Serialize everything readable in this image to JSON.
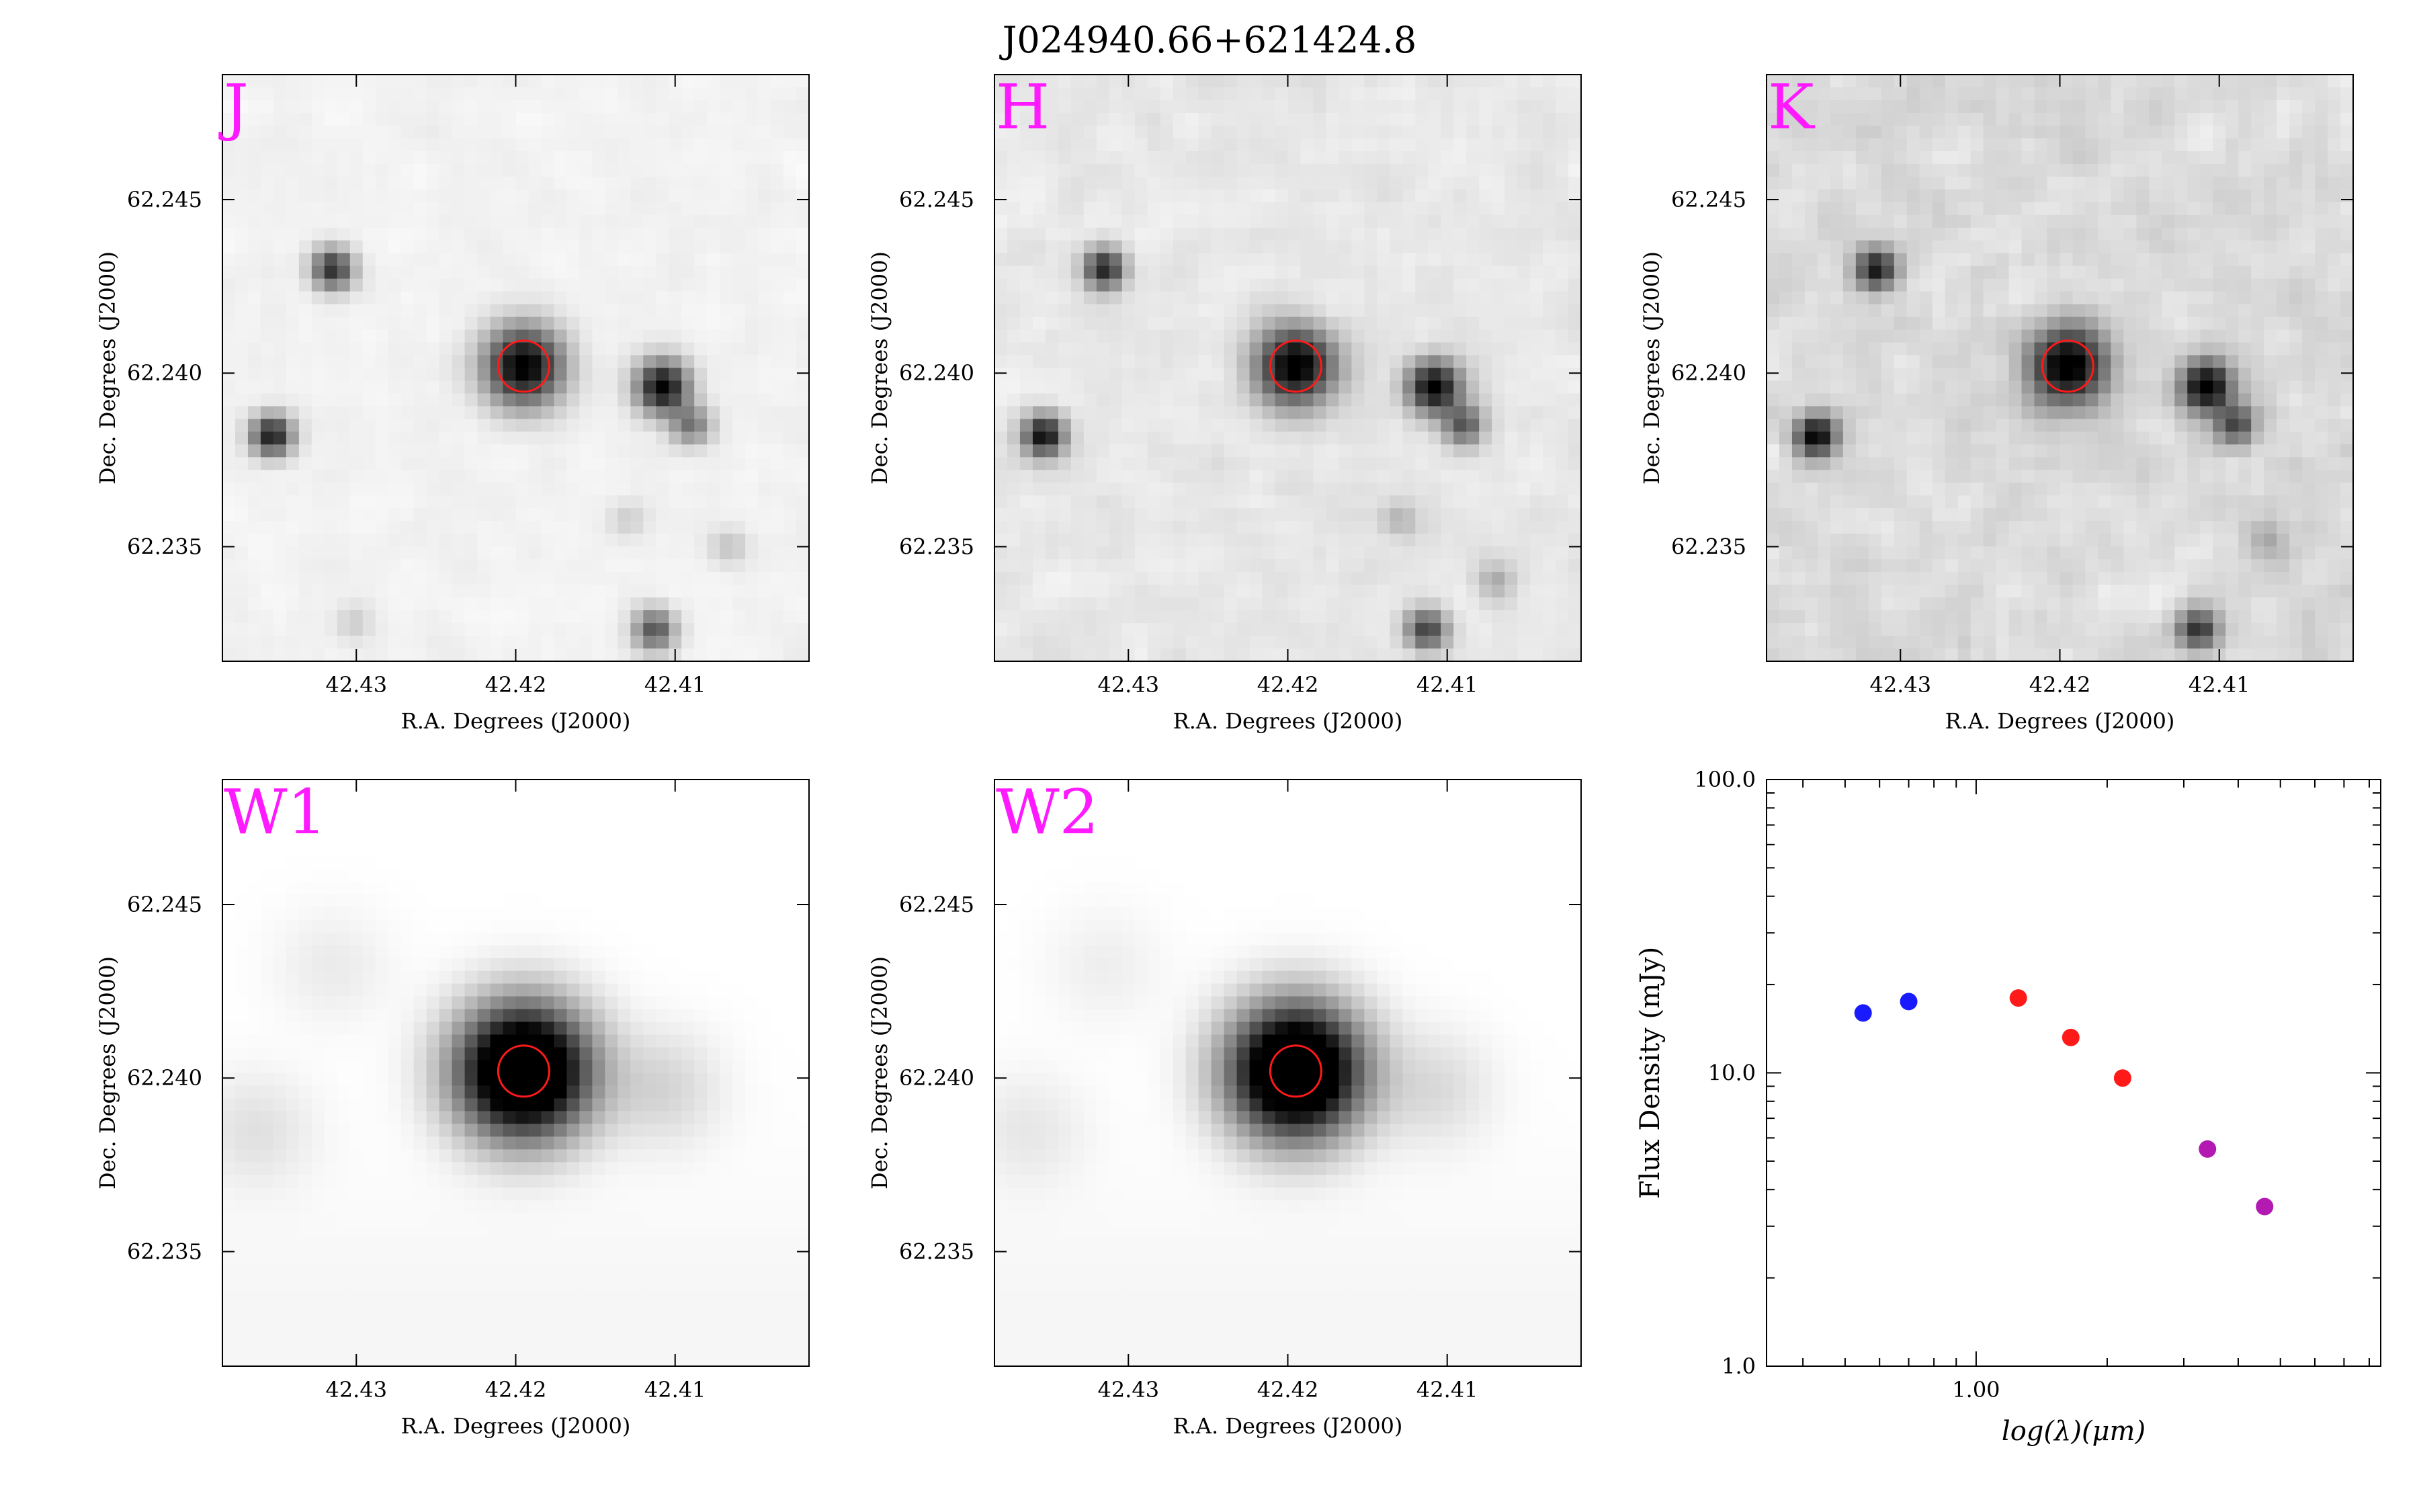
{
  "figure": {
    "title": "J024940.66+621424.8"
  },
  "chart_data": [
    {
      "type": "image",
      "band": "J",
      "xlabel": "R.A. Degrees (J2000)",
      "ylabel": "Dec. Degrees (J2000)",
      "xlim": [
        42.4016,
        42.4384
      ],
      "ylim": [
        62.2317,
        62.2486
      ],
      "xticks": [
        "42.41",
        "42.42",
        "42.43"
      ],
      "yticks": [
        "62.235",
        "62.240",
        "62.245"
      ],
      "marker_color": "#ff1a1a",
      "label_color": "#ff19ff",
      "sources": [
        {
          "ra": 42.4195,
          "dec": 62.2402,
          "amp": 1.0,
          "sigma": 2.1
        },
        {
          "ra": 42.4108,
          "dec": 62.2396,
          "amp": 0.95,
          "sigma": 1.4
        },
        {
          "ra": 42.409,
          "dec": 62.2385,
          "amp": 0.45,
          "sigma": 1.1
        },
        {
          "ra": 42.4315,
          "dec": 62.243,
          "amp": 0.75,
          "sigma": 1.1
        },
        {
          "ra": 42.4353,
          "dec": 62.2382,
          "amp": 0.85,
          "sigma": 1.1
        },
        {
          "ra": 42.4113,
          "dec": 62.2326,
          "amp": 0.6,
          "sigma": 1.1
        },
        {
          "ra": 42.4066,
          "dec": 62.235,
          "amp": 0.15,
          "sigma": 1.0
        },
        {
          "ra": 42.413,
          "dec": 62.2358,
          "amp": 0.12,
          "sigma": 1.0
        },
        {
          "ra": 42.4302,
          "dec": 62.2328,
          "amp": 0.12,
          "sigma": 1.0
        }
      ],
      "noise": 0.06,
      "circle": {
        "ra": 42.4195,
        "dec": 62.2402
      }
    },
    {
      "type": "image",
      "band": "H",
      "xlabel": "R.A. Degrees (J2000)",
      "ylabel": "Dec. Degrees (J2000)",
      "xlim": [
        42.4016,
        42.4384
      ],
      "ylim": [
        62.2317,
        62.2486
      ],
      "xticks": [
        "42.41",
        "42.42",
        "42.43"
      ],
      "yticks": [
        "62.235",
        "62.240",
        "62.245"
      ],
      "marker_color": "#ff1a1a",
      "label_color": "#ff19ff",
      "sources": [
        {
          "ra": 42.4195,
          "dec": 62.2402,
          "amp": 1.0,
          "sigma": 2.1
        },
        {
          "ra": 42.4108,
          "dec": 62.2396,
          "amp": 0.95,
          "sigma": 1.4
        },
        {
          "ra": 42.409,
          "dec": 62.2385,
          "amp": 0.55,
          "sigma": 1.1
        },
        {
          "ra": 42.4315,
          "dec": 62.243,
          "amp": 0.8,
          "sigma": 1.1
        },
        {
          "ra": 42.4353,
          "dec": 62.2382,
          "amp": 0.9,
          "sigma": 1.1
        },
        {
          "ra": 42.4113,
          "dec": 62.2326,
          "amp": 0.65,
          "sigma": 1.1
        },
        {
          "ra": 42.407,
          "dec": 62.234,
          "amp": 0.2,
          "sigma": 1.0
        },
        {
          "ra": 42.413,
          "dec": 62.2358,
          "amp": 0.18,
          "sigma": 1.0
        }
      ],
      "noise": 0.12,
      "circle": {
        "ra": 42.4195,
        "dec": 62.2402
      }
    },
    {
      "type": "image",
      "band": "K",
      "xlabel": "R.A. Degrees (J2000)",
      "ylabel": "Dec. Degrees (J2000)",
      "xlim": [
        42.4016,
        42.4384
      ],
      "ylim": [
        62.2317,
        62.2486
      ],
      "xticks": [
        "42.41",
        "42.42",
        "42.43"
      ],
      "yticks": [
        "62.235",
        "62.240",
        "62.245"
      ],
      "marker_color": "#ff1a1a",
      "label_color": "#ff19ff",
      "sources": [
        {
          "ra": 42.4195,
          "dec": 62.2402,
          "amp": 1.0,
          "sigma": 2.1
        },
        {
          "ra": 42.4108,
          "dec": 62.2396,
          "amp": 0.95,
          "sigma": 1.4
        },
        {
          "ra": 42.409,
          "dec": 62.2385,
          "amp": 0.6,
          "sigma": 1.1
        },
        {
          "ra": 42.4315,
          "dec": 62.243,
          "amp": 0.8,
          "sigma": 1.1
        },
        {
          "ra": 42.4353,
          "dec": 62.2382,
          "amp": 0.9,
          "sigma": 1.1
        },
        {
          "ra": 42.4113,
          "dec": 62.2326,
          "amp": 0.7,
          "sigma": 1.1
        },
        {
          "ra": 42.407,
          "dec": 62.2352,
          "amp": 0.2,
          "sigma": 1.0
        }
      ],
      "noise": 0.2,
      "circle": {
        "ra": 42.4195,
        "dec": 62.2402
      }
    },
    {
      "type": "image",
      "band": "W1",
      "xlabel": "R.A. Degrees (J2000)",
      "ylabel": "Dec. Degrees (J2000)",
      "xlim": [
        42.4016,
        42.4384
      ],
      "ylim": [
        62.2317,
        62.2486
      ],
      "xticks": [
        "42.41",
        "42.42",
        "42.43"
      ],
      "yticks": [
        "62.235",
        "62.240",
        "62.245"
      ],
      "marker_color": "#ff1a1a",
      "label_color": "#ff19ff",
      "sources": [
        {
          "ra": 42.4195,
          "dec": 62.2402,
          "amp": 1.6,
          "sigma": 3.4
        },
        {
          "ra": 42.4108,
          "dec": 62.2397,
          "amp": 0.12,
          "sigma": 3.0
        },
        {
          "ra": 42.4363,
          "dec": 62.2385,
          "amp": 0.08,
          "sigma": 3.0
        },
        {
          "ra": 42.4315,
          "dec": 62.2432,
          "amp": 0.05,
          "sigma": 3.0
        }
      ],
      "noise": 0.0,
      "circle": {
        "ra": 42.4195,
        "dec": 62.2402
      }
    },
    {
      "type": "image",
      "band": "W2",
      "xlabel": "R.A. Degrees (J2000)",
      "ylabel": "Dec. Degrees (J2000)",
      "xlim": [
        42.4016,
        42.4384
      ],
      "ylim": [
        62.2317,
        62.2486
      ],
      "xticks": [
        "42.41",
        "42.42",
        "42.43"
      ],
      "yticks": [
        "62.235",
        "62.240",
        "62.245"
      ],
      "marker_color": "#ff1a1a",
      "label_color": "#ff19ff",
      "sources": [
        {
          "ra": 42.4195,
          "dec": 62.2402,
          "amp": 1.6,
          "sigma": 3.4
        },
        {
          "ra": 42.4108,
          "dec": 62.2397,
          "amp": 0.1,
          "sigma": 3.0
        },
        {
          "ra": 42.4363,
          "dec": 62.2385,
          "amp": 0.06,
          "sigma": 3.0
        },
        {
          "ra": 42.4315,
          "dec": 62.2432,
          "amp": 0.04,
          "sigma": 3.0
        }
      ],
      "noise": 0.0,
      "circle": {
        "ra": 42.4195,
        "dec": 62.2402
      }
    },
    {
      "type": "scatter",
      "xlabel": "log(λ)(μm)",
      "ylabel": "Flux Density (mJy)",
      "xscale": "log",
      "yscale": "log",
      "xlim": [
        0.33,
        8.5
      ],
      "ylim": [
        1.0,
        100.0
      ],
      "xticks": [
        {
          "value": 1.0,
          "label": "1.00"
        }
      ],
      "yticks": [
        {
          "value": 1.0,
          "label": "1.0"
        },
        {
          "value": 10.0,
          "label": "10.0"
        },
        {
          "value": 100.0,
          "label": "100.0"
        }
      ],
      "series": [
        {
          "color": "#1a1aff",
          "points": [
            {
              "x": 0.55,
              "y": 16.0
            },
            {
              "x": 0.7,
              "y": 17.5
            }
          ]
        },
        {
          "color": "#ff1a1a",
          "points": [
            {
              "x": 1.25,
              "y": 18.0
            },
            {
              "x": 1.65,
              "y": 13.2
            },
            {
              "x": 2.17,
              "y": 9.6
            }
          ]
        },
        {
          "color": "#b21ab2",
          "points": [
            {
              "x": 3.4,
              "y": 5.5
            },
            {
              "x": 4.6,
              "y": 3.5
            }
          ]
        }
      ]
    }
  ]
}
